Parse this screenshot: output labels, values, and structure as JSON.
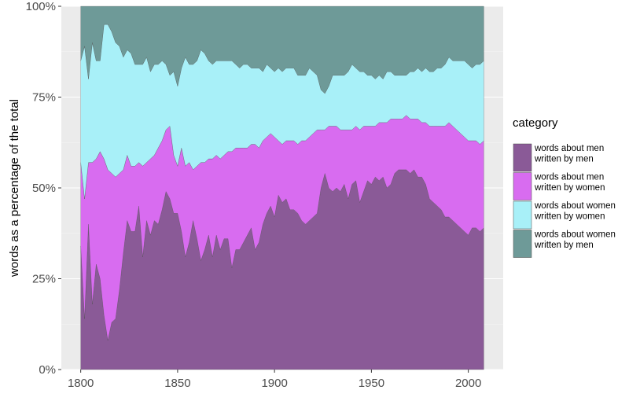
{
  "chart_data": {
    "type": "area",
    "stacked": true,
    "normalized": true,
    "xlabel": "",
    "ylabel": "words as a percentage of the total",
    "xlim": [
      1790,
      2018
    ],
    "ylim": [
      0,
      1
    ],
    "x_ticks": [
      1800,
      1850,
      1900,
      1950,
      2000
    ],
    "x_tick_labels": [
      "1800",
      "1850",
      "1900",
      "1950",
      "2000"
    ],
    "y_ticks": [
      0,
      0.25,
      0.5,
      0.75,
      1
    ],
    "y_tick_labels": [
      "0%",
      "25%",
      "50%",
      "75%",
      "100%"
    ],
    "grid": true,
    "legend": {
      "title": "category",
      "position": "right"
    },
    "x": [
      1800,
      1802,
      1804,
      1806,
      1808,
      1810,
      1812,
      1814,
      1816,
      1818,
      1820,
      1822,
      1824,
      1826,
      1828,
      1830,
      1832,
      1834,
      1836,
      1838,
      1840,
      1842,
      1844,
      1846,
      1848,
      1850,
      1852,
      1854,
      1856,
      1858,
      1860,
      1862,
      1864,
      1866,
      1868,
      1870,
      1872,
      1874,
      1876,
      1878,
      1880,
      1882,
      1884,
      1886,
      1888,
      1890,
      1892,
      1894,
      1896,
      1898,
      1900,
      1902,
      1904,
      1906,
      1908,
      1910,
      1912,
      1914,
      1916,
      1918,
      1920,
      1922,
      1924,
      1926,
      1928,
      1930,
      1932,
      1934,
      1936,
      1938,
      1940,
      1942,
      1944,
      1946,
      1948,
      1950,
      1952,
      1954,
      1956,
      1958,
      1960,
      1962,
      1964,
      1966,
      1968,
      1970,
      1972,
      1974,
      1976,
      1978,
      1980,
      1982,
      1984,
      1986,
      1988,
      1990,
      1992,
      1994,
      1996,
      1998,
      2000,
      2002,
      2004,
      2006,
      2008
    ],
    "series": [
      {
        "name": "words about men written by men",
        "label_lines": [
          "words about men",
          "written by men"
        ],
        "color": "#8a5a97",
        "values": [
          0.34,
          0.14,
          0.4,
          0.18,
          0.29,
          0.25,
          0.15,
          0.08,
          0.13,
          0.14,
          0.22,
          0.32,
          0.41,
          0.38,
          0.38,
          0.45,
          0.31,
          0.41,
          0.37,
          0.41,
          0.4,
          0.44,
          0.49,
          0.47,
          0.43,
          0.43,
          0.38,
          0.31,
          0.35,
          0.41,
          0.36,
          0.3,
          0.33,
          0.37,
          0.31,
          0.37,
          0.33,
          0.36,
          0.36,
          0.28,
          0.33,
          0.33,
          0.35,
          0.37,
          0.39,
          0.33,
          0.35,
          0.4,
          0.43,
          0.45,
          0.42,
          0.48,
          0.46,
          0.47,
          0.44,
          0.44,
          0.43,
          0.41,
          0.4,
          0.41,
          0.42,
          0.43,
          0.5,
          0.54,
          0.5,
          0.49,
          0.5,
          0.49,
          0.51,
          0.47,
          0.51,
          0.52,
          0.46,
          0.49,
          0.52,
          0.51,
          0.53,
          0.52,
          0.53,
          0.5,
          0.51,
          0.54,
          0.55,
          0.55,
          0.55,
          0.54,
          0.55,
          0.53,
          0.53,
          0.51,
          0.47,
          0.46,
          0.45,
          0.44,
          0.42,
          0.42,
          0.41,
          0.4,
          0.39,
          0.38,
          0.37,
          0.39,
          0.39,
          0.38,
          0.39
        ]
      },
      {
        "name": "words about men written by women",
        "label_lines": [
          "words about men",
          "written by women"
        ],
        "color": "#d86cf0",
        "values": [
          0.23,
          0.33,
          0.17,
          0.39,
          0.29,
          0.35,
          0.43,
          0.47,
          0.41,
          0.39,
          0.32,
          0.23,
          0.18,
          0.18,
          0.18,
          0.12,
          0.25,
          0.16,
          0.21,
          0.18,
          0.21,
          0.19,
          0.17,
          0.2,
          0.16,
          0.13,
          0.23,
          0.25,
          0.22,
          0.14,
          0.2,
          0.27,
          0.24,
          0.21,
          0.27,
          0.22,
          0.25,
          0.23,
          0.24,
          0.32,
          0.28,
          0.28,
          0.26,
          0.24,
          0.23,
          0.29,
          0.26,
          0.23,
          0.21,
          0.2,
          0.22,
          0.15,
          0.16,
          0.16,
          0.19,
          0.19,
          0.19,
          0.22,
          0.23,
          0.23,
          0.23,
          0.23,
          0.16,
          0.12,
          0.17,
          0.18,
          0.17,
          0.17,
          0.15,
          0.19,
          0.15,
          0.15,
          0.2,
          0.18,
          0.15,
          0.16,
          0.14,
          0.16,
          0.15,
          0.18,
          0.18,
          0.15,
          0.14,
          0.14,
          0.15,
          0.15,
          0.14,
          0.16,
          0.15,
          0.17,
          0.2,
          0.21,
          0.22,
          0.23,
          0.25,
          0.26,
          0.26,
          0.26,
          0.26,
          0.26,
          0.26,
          0.24,
          0.24,
          0.24,
          0.24
        ]
      },
      {
        "name": "words about women written by women",
        "label_lines": [
          "words about women",
          "written by women"
        ],
        "color": "#a8f0f8",
        "values": [
          0.28,
          0.42,
          0.23,
          0.33,
          0.27,
          0.25,
          0.37,
          0.4,
          0.39,
          0.37,
          0.35,
          0.31,
          0.29,
          0.31,
          0.28,
          0.27,
          0.28,
          0.29,
          0.24,
          0.25,
          0.23,
          0.22,
          0.18,
          0.14,
          0.23,
          0.22,
          0.22,
          0.3,
          0.27,
          0.29,
          0.29,
          0.31,
          0.3,
          0.27,
          0.26,
          0.26,
          0.27,
          0.26,
          0.25,
          0.25,
          0.23,
          0.22,
          0.23,
          0.23,
          0.21,
          0.21,
          0.22,
          0.19,
          0.2,
          0.18,
          0.18,
          0.2,
          0.2,
          0.2,
          0.2,
          0.2,
          0.19,
          0.18,
          0.18,
          0.19,
          0.17,
          0.15,
          0.11,
          0.1,
          0.11,
          0.14,
          0.14,
          0.15,
          0.15,
          0.16,
          0.18,
          0.16,
          0.16,
          0.15,
          0.14,
          0.14,
          0.13,
          0.13,
          0.12,
          0.14,
          0.13,
          0.12,
          0.12,
          0.12,
          0.11,
          0.13,
          0.13,
          0.14,
          0.14,
          0.15,
          0.15,
          0.15,
          0.16,
          0.16,
          0.17,
          0.18,
          0.18,
          0.19,
          0.2,
          0.21,
          0.21,
          0.2,
          0.21,
          0.22,
          0.22
        ]
      },
      {
        "name": "words about women written by men",
        "label_lines": [
          "words about women",
          "written by men"
        ],
        "color": "#6e9a98",
        "values": [
          0.15,
          0.11,
          0.2,
          0.1,
          0.15,
          0.15,
          0.05,
          0.05,
          0.07,
          0.1,
          0.11,
          0.14,
          0.12,
          0.13,
          0.16,
          0.16,
          0.16,
          0.14,
          0.18,
          0.16,
          0.16,
          0.15,
          0.16,
          0.19,
          0.18,
          0.22,
          0.17,
          0.14,
          0.16,
          0.16,
          0.15,
          0.12,
          0.13,
          0.15,
          0.16,
          0.15,
          0.15,
          0.15,
          0.15,
          0.15,
          0.16,
          0.17,
          0.16,
          0.16,
          0.17,
          0.17,
          0.17,
          0.18,
          0.16,
          0.17,
          0.18,
          0.17,
          0.18,
          0.17,
          0.17,
          0.17,
          0.19,
          0.19,
          0.19,
          0.17,
          0.18,
          0.19,
          0.23,
          0.24,
          0.22,
          0.19,
          0.19,
          0.19,
          0.19,
          0.18,
          0.16,
          0.17,
          0.18,
          0.18,
          0.19,
          0.19,
          0.2,
          0.19,
          0.2,
          0.18,
          0.18,
          0.19,
          0.19,
          0.19,
          0.19,
          0.18,
          0.18,
          0.17,
          0.18,
          0.17,
          0.18,
          0.18,
          0.17,
          0.17,
          0.16,
          0.14,
          0.15,
          0.15,
          0.15,
          0.15,
          0.16,
          0.17,
          0.16,
          0.16,
          0.15
        ]
      }
    ]
  }
}
